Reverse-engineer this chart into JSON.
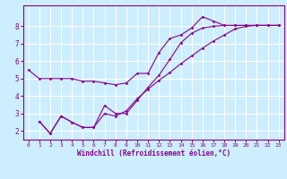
{
  "background_color": "#cceeff",
  "grid_color": "#ffffff",
  "line_color": "#880088",
  "xlabel": "Windchill (Refroidissement éolien,°C)",
  "xlim": [
    -0.5,
    23.5
  ],
  "ylim": [
    1.5,
    9.2
  ],
  "xticks": [
    0,
    1,
    2,
    3,
    4,
    5,
    6,
    7,
    8,
    9,
    10,
    11,
    12,
    13,
    14,
    15,
    16,
    17,
    18,
    19,
    20,
    21,
    22,
    23
  ],
  "yticks": [
    2,
    3,
    4,
    5,
    6,
    7,
    8
  ],
  "line1_x": [
    0,
    1,
    2,
    3,
    4,
    5,
    6,
    7,
    8,
    9,
    10,
    11,
    12,
    13,
    14,
    15,
    16,
    17,
    18,
    19,
    20,
    21,
    22,
    23
  ],
  "line1_y": [
    5.5,
    5.0,
    5.0,
    5.0,
    5.0,
    4.85,
    4.85,
    4.75,
    4.65,
    4.75,
    5.3,
    5.3,
    6.5,
    7.3,
    7.5,
    7.9,
    8.55,
    8.3,
    8.05,
    8.05,
    8.05,
    8.05,
    8.05,
    8.05
  ],
  "line2_x": [
    1,
    2,
    3,
    4,
    5,
    6,
    7,
    8,
    9,
    10,
    11,
    12,
    13,
    14,
    15,
    16,
    17,
    18,
    19,
    20,
    21,
    22,
    23
  ],
  "line2_y": [
    2.55,
    1.85,
    2.85,
    2.5,
    2.2,
    2.2,
    3.0,
    2.85,
    3.15,
    3.85,
    4.4,
    4.9,
    5.35,
    5.85,
    6.3,
    6.75,
    7.15,
    7.5,
    7.85,
    8.0,
    8.05,
    8.05,
    8.05
  ],
  "line3_x": [
    1,
    2,
    3,
    4,
    5,
    6,
    7,
    8,
    9,
    10,
    11,
    12,
    13,
    14,
    15,
    16,
    17,
    18,
    19,
    20,
    21,
    22,
    23
  ],
  "line3_y": [
    2.55,
    1.85,
    2.85,
    2.5,
    2.2,
    2.2,
    3.45,
    3.0,
    3.0,
    3.75,
    4.5,
    5.2,
    6.1,
    7.05,
    7.6,
    7.9,
    8.0,
    8.05,
    8.05,
    8.05,
    8.05,
    8.05,
    8.05
  ]
}
